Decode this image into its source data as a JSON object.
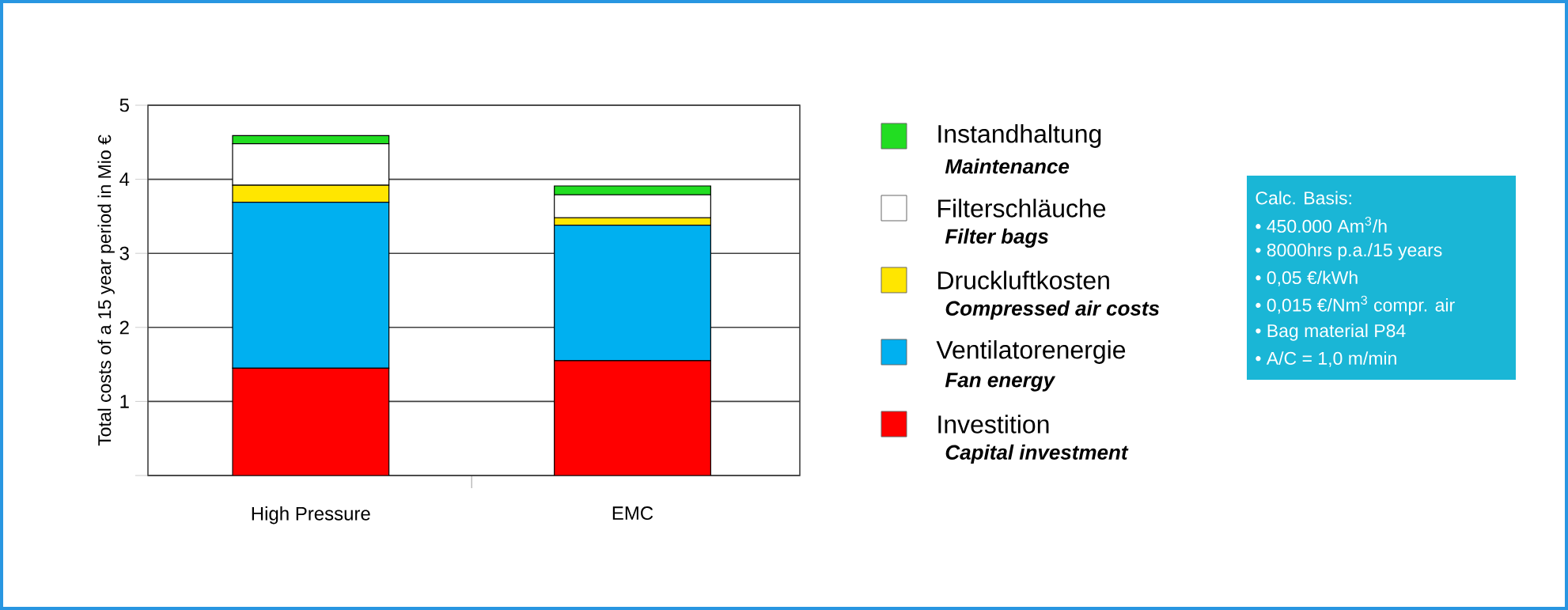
{
  "chart_data": {
    "type": "bar",
    "stacked": true,
    "ylabel": "Total costs of a 15 year period in Mio €",
    "categories": [
      "High Pressure",
      "EMC"
    ],
    "series": [
      {
        "name": "Investition",
        "color": "#ff0000",
        "values": [
          1.45,
          1.55
        ]
      },
      {
        "name": "Ventilatorenergie",
        "color": "#00b0f0",
        "values": [
          2.24,
          1.83
        ]
      },
      {
        "name": "Druckluftkosten",
        "color": "#ffe600",
        "values": [
          0.23,
          0.1
        ]
      },
      {
        "name": "Filterschläuche",
        "color": "#ffffff",
        "values": [
          0.56,
          0.31
        ]
      },
      {
        "name": "Instandhaltung",
        "color": "#22dd22",
        "values": [
          0.11,
          0.12
        ]
      }
    ],
    "annotations": [
      "Capital investment",
      "Fan energy",
      "Compressed air costs",
      "Filter bags",
      "Maintenance",
      "Calc. Basis:",
      "• 450.000 Am$^{3}$/h",
      "• 8000hrs p.a./15 years",
      "• 0,05 €/kWh",
      "• 0,015 €/Nm$^{3}$ compr. air",
      "• Bag material P84",
      "• A/C = 1,0 m/min"
    ],
    "ylim": [
      0,
      5
    ],
    "yticks": [
      {
        "value": 0,
        "label": null
      },
      1,
      2,
      3,
      4,
      5
    ],
    "grid": "y",
    "legend": "right"
  }
}
